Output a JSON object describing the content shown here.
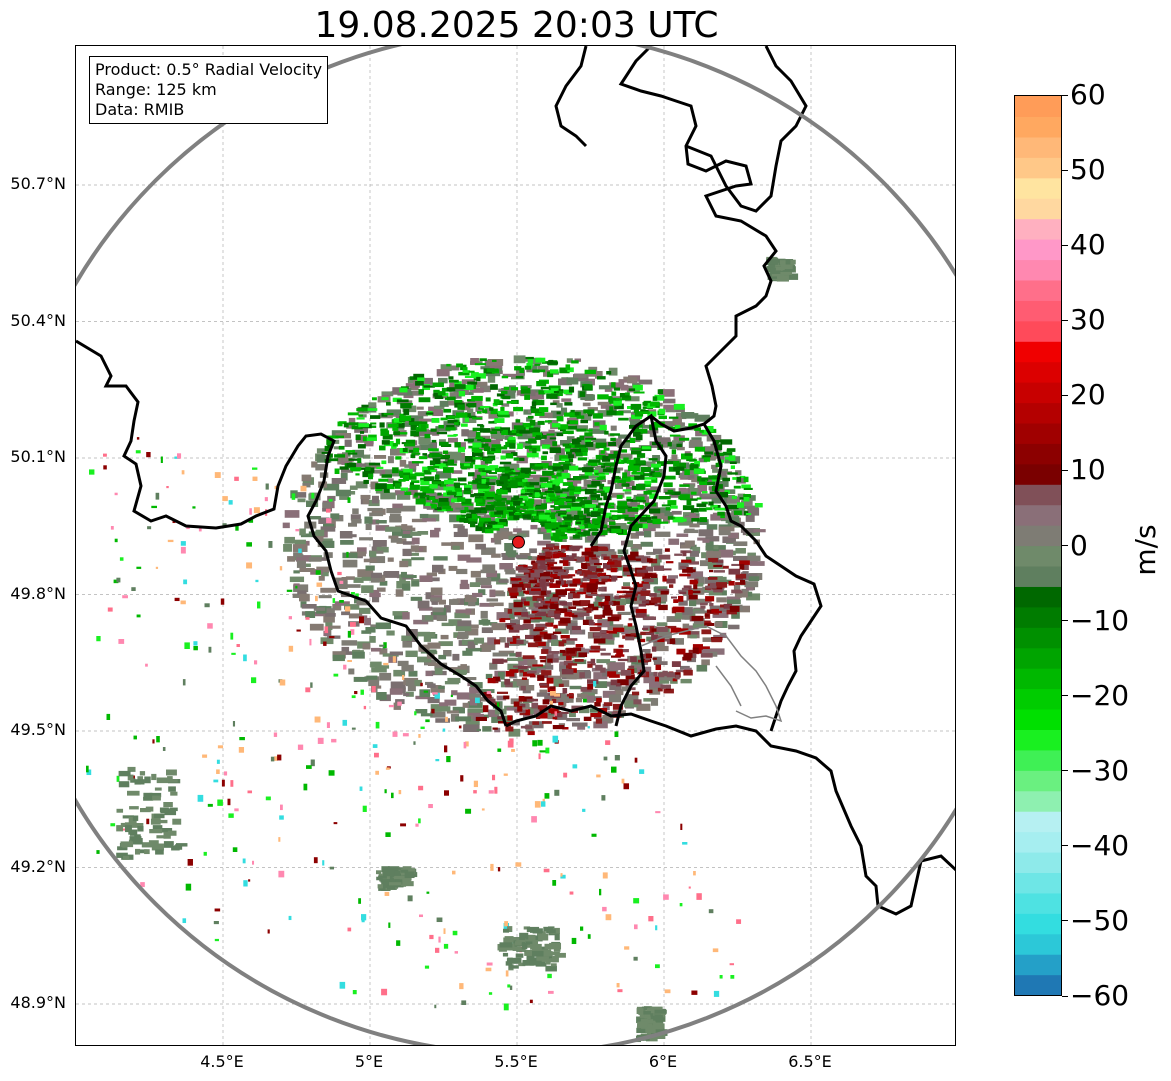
{
  "title": "19.08.2025 20:03 UTC",
  "info_box": {
    "product": "Product: 0.5° Radial Velocity",
    "range": "Range: 125 km",
    "data": "Data: RMIB"
  },
  "map": {
    "lon_range": [
      4.0,
      7.0
    ],
    "lat_range": [
      48.8,
      51.0
    ],
    "lon_ticks": [
      {
        "value": 4.5,
        "label": "4.5°E"
      },
      {
        "value": 5.0,
        "label": "5°E"
      },
      {
        "value": 5.5,
        "label": "5.5°E"
      },
      {
        "value": 6.0,
        "label": "6°E"
      },
      {
        "value": 6.5,
        "label": "6.5°E"
      }
    ],
    "lat_ticks": [
      {
        "value": 50.7,
        "label": "50.7°N"
      },
      {
        "value": 50.4,
        "label": "50.4°N"
      },
      {
        "value": 50.1,
        "label": "50.1°N"
      },
      {
        "value": 49.8,
        "label": "49.8°N"
      },
      {
        "value": 49.5,
        "label": "49.5°N"
      },
      {
        "value": 49.2,
        "label": "49.2°N"
      },
      {
        "value": 48.9,
        "label": "48.9°N"
      }
    ],
    "radar_site": {
      "lon": 5.505,
      "lat": 49.915,
      "color": "#e41a1c"
    },
    "range_ring_km": 125,
    "gridlines": true
  },
  "colorbar": {
    "unit": "m/s",
    "min": -60,
    "max": 60,
    "ticks": [
      {
        "value": 60,
        "label": "60"
      },
      {
        "value": 50,
        "label": "50"
      },
      {
        "value": 40,
        "label": "40"
      },
      {
        "value": 30,
        "label": "30"
      },
      {
        "value": 20,
        "label": "20"
      },
      {
        "value": 10,
        "label": "10"
      },
      {
        "value": 0,
        "label": "0"
      },
      {
        "value": -10,
        "label": "−10"
      },
      {
        "value": -20,
        "label": "−20"
      },
      {
        "value": -30,
        "label": "−30"
      },
      {
        "value": -40,
        "label": "−40"
      },
      {
        "value": -50,
        "label": "−50"
      },
      {
        "value": -60,
        "label": "−60"
      }
    ],
    "colors": [
      "#1f78b4",
      "#24a0c8",
      "#2cc8d8",
      "#33dde0",
      "#4ee2e2",
      "#6ee6e6",
      "#8eeaea",
      "#a6eef0",
      "#b6f0f2",
      "#8ef0b0",
      "#6af080",
      "#3ff055",
      "#19f020",
      "#00e000",
      "#00cc00",
      "#00b800",
      "#00a400",
      "#009000",
      "#007c00",
      "#006800",
      "#5f7f5f",
      "#6f8a6a",
      "#7e7c74",
      "#8a6f78",
      "#805058",
      "#7a0000",
      "#8c0000",
      "#a00000",
      "#b40000",
      "#c80000",
      "#dc0000",
      "#f00000",
      "#ff4a5a",
      "#ff5c72",
      "#ff6f8a",
      "#ff88b0",
      "#ff98c8",
      "#ffb0c0",
      "#ffd8a0",
      "#ffe4a0",
      "#ffc888",
      "#ffb878",
      "#ffa860",
      "#ff9c58"
    ]
  }
}
